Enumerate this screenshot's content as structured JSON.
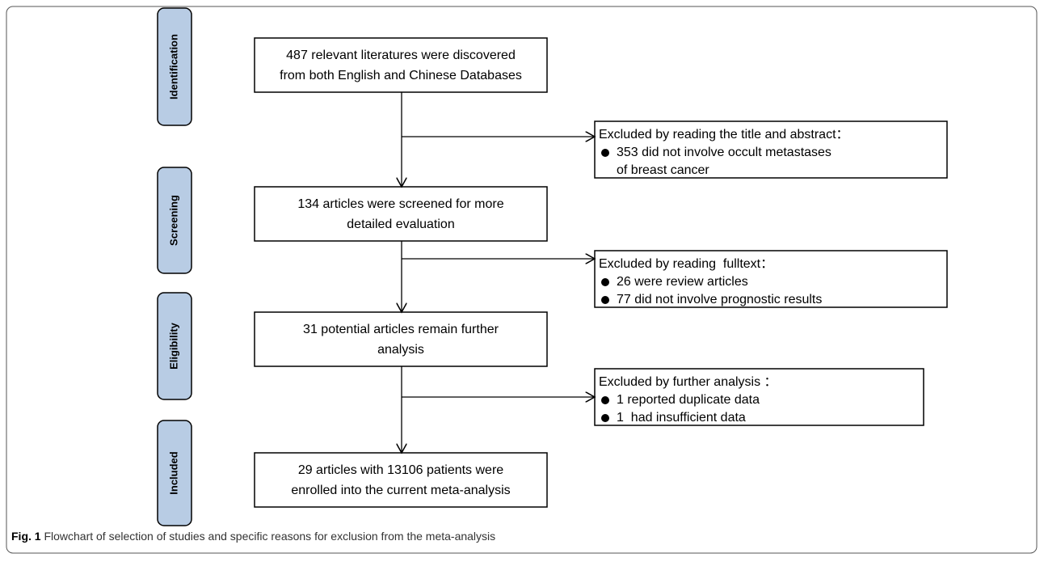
{
  "stages": [
    "Identification",
    "Screening",
    "Eligibility",
    "Included"
  ],
  "boxes": [
    {
      "lines": [
        "487 relevant literatures were discovered",
        "from both English and Chinese Databases"
      ]
    },
    {
      "lines": [
        "134 articles were screened for more",
        "detailed evaluation"
      ]
    },
    {
      "lines": [
        "31 potential articles remain further",
        "analysis"
      ]
    },
    {
      "lines": [
        "29 articles with 13106 patients were",
        "enrolled into the current meta-analysis"
      ]
    }
  ],
  "exclusions": [
    {
      "title": "Excluded by reading the title and abstract：",
      "items": [
        [
          "353 did not involve occult metastases",
          "of breast cancer"
        ]
      ]
    },
    {
      "title": "Excluded by reading  fulltext：",
      "items": [
        [
          "26 were review articles"
        ],
        [
          "77 did not involve prognostic results"
        ]
      ]
    },
    {
      "title": "Excluded by further analysis ：",
      "items": [
        [
          "1 reported duplicate data"
        ],
        [
          "1  had insufficient data"
        ]
      ]
    }
  ],
  "caption": {
    "label": "Fig. 1",
    "text": "Flowchart of selection of studies and specific reasons for exclusion from the meta-analysis"
  }
}
